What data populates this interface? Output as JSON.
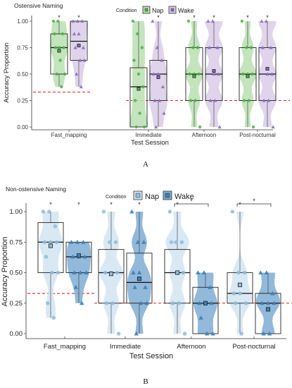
{
  "chart_data": [
    {
      "type": "violin",
      "panel_label": "A",
      "title": "Ostensive Naming",
      "legend_title": "Condition",
      "xlabel": "Test Session",
      "ylabel": "Accuracy Proportion",
      "ylim": [
        0,
        1
      ],
      "y_ticks": [
        "0.00",
        "0.25",
        "0.50",
        "0.75",
        "1.00"
      ],
      "categories": [
        "Fast_mapping",
        "Immediate",
        "Afternoon",
        "Post-nocturnal"
      ],
      "chance_level": 0.33,
      "chance_level_late": 0.25,
      "series": [
        {
          "name": "Nap",
          "color": "#4daf4a",
          "fill": "#b8dfb0",
          "marker": "circle",
          "box": [
            {
              "q1": 0.5,
              "median": 0.75,
              "q3": 0.88,
              "mean": 0.72
            },
            {
              "q1": 0.0,
              "median": 0.38,
              "q3": 0.56,
              "mean": 0.36
            },
            {
              "q1": 0.25,
              "median": 0.5,
              "q3": 0.75,
              "mean": 0.48
            },
            {
              "q1": 0.25,
              "median": 0.5,
              "q3": 0.75,
              "mean": 0.48
            }
          ],
          "points": [
            [
              1.0,
              1.0,
              0.88,
              0.88,
              0.75,
              0.75,
              0.75,
              0.63,
              0.5,
              0.5,
              0.38
            ],
            [
              1.0,
              0.88,
              0.75,
              0.63,
              0.5,
              0.38,
              0.25,
              0.13,
              0.0,
              0.0
            ],
            [
              1.0,
              0.75,
              0.75,
              0.5,
              0.5,
              0.5,
              0.25,
              0.25,
              0.0
            ],
            [
              1.0,
              0.75,
              0.75,
              0.5,
              0.5,
              0.5,
              0.25,
              0.25,
              0.0
            ]
          ]
        },
        {
          "name": "Wake",
          "color": "#8e6bbf",
          "fill": "#d9cde8",
          "marker": "triangle",
          "box": [
            {
              "q1": 0.63,
              "median": 0.81,
              "q3": 1.0,
              "mean": 0.77
            },
            {
              "q1": 0.25,
              "median": 0.5,
              "q3": 0.63,
              "mean": 0.47
            },
            {
              "q1": 0.25,
              "median": 0.5,
              "q3": 0.75,
              "mean": 0.53
            },
            {
              "q1": 0.25,
              "median": 0.5,
              "q3": 0.75,
              "mean": 0.55
            }
          ],
          "points": [
            [
              1.0,
              1.0,
              1.0,
              0.88,
              0.88,
              0.75,
              0.75,
              0.63,
              0.63,
              0.5,
              0.38
            ],
            [
              1.0,
              0.75,
              0.63,
              0.5,
              0.5,
              0.38,
              0.25,
              0.25,
              0.13,
              0.0
            ],
            [
              1.0,
              1.0,
              0.75,
              0.75,
              0.5,
              0.5,
              0.25,
              0.25,
              0.0
            ],
            [
              1.0,
              1.0,
              0.75,
              0.75,
              0.5,
              0.5,
              0.25,
              0.25,
              0.0
            ]
          ]
        }
      ],
      "significance": [
        {
          "category": 0,
          "series": "Nap",
          "label": "*"
        },
        {
          "category": 0,
          "series": "Wake",
          "label": "*"
        },
        {
          "category": 1,
          "series": "Wake",
          "label": "*"
        },
        {
          "category": 2,
          "series": "Nap",
          "label": "*"
        },
        {
          "category": 2,
          "series": "Wake",
          "label": "*"
        },
        {
          "category": 3,
          "series": "Nap",
          "label": "*"
        },
        {
          "category": 3,
          "series": "Wake",
          "label": "*"
        }
      ]
    },
    {
      "type": "violin",
      "panel_label": "B",
      "title": "Non-ostensive Naming",
      "legend_title": "Condition",
      "xlabel": "Test Session",
      "ylabel": "Accuracy Proportion",
      "ylim": [
        0,
        1
      ],
      "y_ticks": [
        "0.00",
        "0.25",
        "0.50",
        "0.75",
        "1.00"
      ],
      "categories": [
        "Fast_mapping",
        "Immediate",
        "Afternoon",
        "Post-nocturnal"
      ],
      "chance_level": 0.33,
      "chance_level_late": 0.25,
      "series": [
        {
          "name": "Nap",
          "color": "#8fbcd9",
          "fill": "#d2e5f1",
          "marker": "circle",
          "box": [
            {
              "q1": 0.5,
              "median": 0.75,
              "q3": 0.91,
              "mean": 0.72
            },
            {
              "q1": 0.25,
              "median": 0.5,
              "q3": 0.69,
              "mean": 0.49
            },
            {
              "q1": 0.25,
              "median": 0.5,
              "q3": 0.69,
              "mean": 0.5
            },
            {
              "q1": 0.25,
              "median": 0.33,
              "q3": 0.5,
              "mean": 0.4
            }
          ],
          "points": [
            [
              1.0,
              1.0,
              0.88,
              0.75,
              0.75,
              0.75,
              0.63,
              0.5,
              0.5,
              0.25,
              0.13
            ],
            [
              1.0,
              0.75,
              0.75,
              0.5,
              0.5,
              0.5,
              0.25,
              0.25,
              0.0
            ],
            [
              1.0,
              0.75,
              0.75,
              0.75,
              0.5,
              0.5,
              0.25,
              0.25,
              0.0
            ],
            [
              1.0,
              0.5,
              0.5,
              0.33,
              0.33,
              0.25,
              0.25,
              0.0
            ]
          ]
        },
        {
          "name": "Wake",
          "color": "#3b7fb6",
          "fill": "#7fadd2",
          "marker": "triangle",
          "box": [
            {
              "q1": 0.5,
              "median": 0.63,
              "q3": 0.75,
              "mean": 0.64
            },
            {
              "q1": 0.25,
              "median": 0.42,
              "q3": 0.66,
              "mean": 0.45
            },
            {
              "q1": 0.0,
              "median": 0.25,
              "q3": 0.38,
              "mean": 0.25
            },
            {
              "q1": 0.0,
              "median": 0.25,
              "q3": 0.33,
              "mean": 0.2
            }
          ],
          "points": [
            [
              0.75,
              0.75,
              0.75,
              0.63,
              0.63,
              0.63,
              0.5,
              0.5,
              0.5,
              0.38,
              0.25
            ],
            [
              1.0,
              0.75,
              0.75,
              0.5,
              0.5,
              0.38,
              0.38,
              0.25,
              0.25,
              0.0
            ],
            [
              0.5,
              0.5,
              0.38,
              0.25,
              0.25,
              0.25,
              0.13,
              0.0,
              0.0
            ],
            [
              0.5,
              0.5,
              0.33,
              0.25,
              0.25,
              0.25,
              0.0,
              0.0
            ]
          ]
        }
      ],
      "significance": [
        {
          "category": 0,
          "series": "Nap",
          "label": "*"
        },
        {
          "category": 0,
          "series": "Wake",
          "label": "*"
        },
        {
          "category": 1,
          "series": "Nap",
          "label": "*"
        },
        {
          "category": 1,
          "series": "Wake",
          "label": "*"
        },
        {
          "category": 2,
          "series": "Nap",
          "label": "*"
        },
        {
          "category": 3,
          "series": "Nap",
          "label": "*"
        }
      ],
      "brackets": [
        {
          "category": 2,
          "label": "*"
        },
        {
          "category": 3,
          "label": "*"
        }
      ]
    }
  ]
}
